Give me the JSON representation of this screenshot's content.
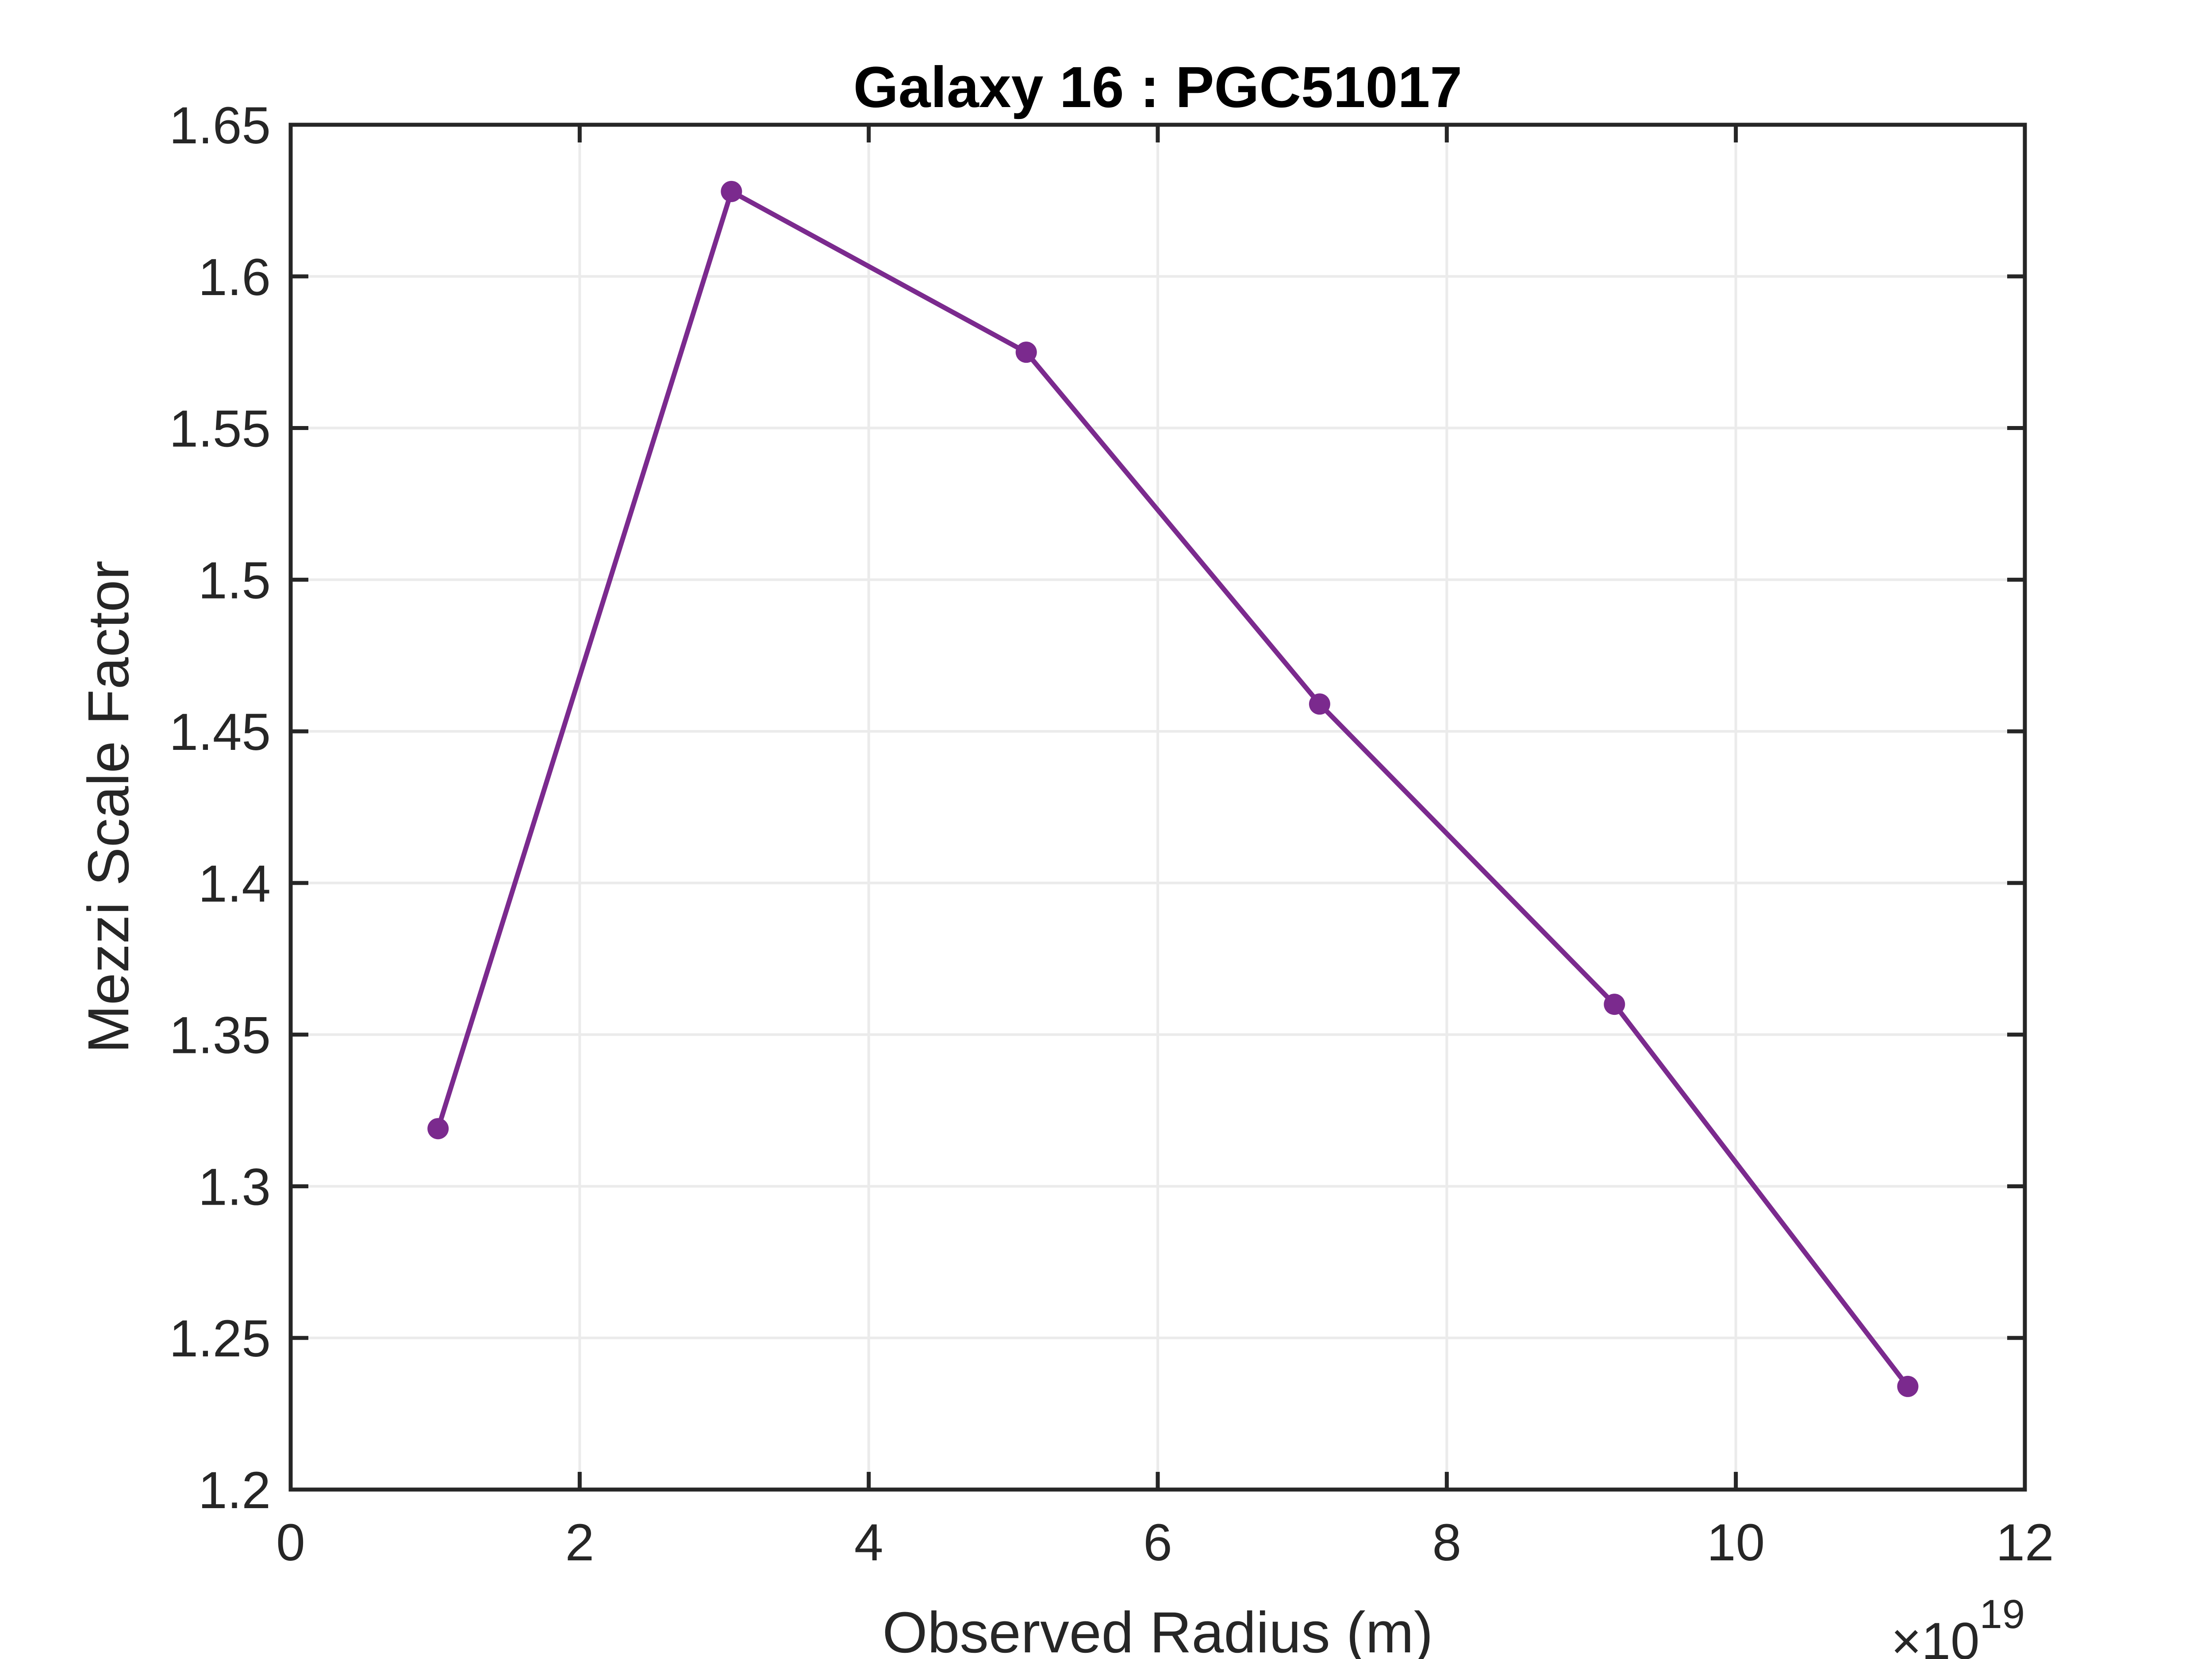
{
  "chart_data": {
    "type": "line",
    "title": "Galaxy 16 : PGC51017",
    "xlabel": "Observed Radius (m)",
    "ylabel": "Mezzi Scale Factor",
    "x_exponent": {
      "times": "×",
      "base": "10",
      "power": "19"
    },
    "xlim": [
      0,
      12
    ],
    "ylim": [
      1.2,
      1.65
    ],
    "xticks": [
      0,
      2,
      4,
      6,
      8,
      10,
      12
    ],
    "yticks": [
      1.2,
      1.25,
      1.3,
      1.35,
      1.4,
      1.45,
      1.5,
      1.55,
      1.6,
      1.65
    ],
    "xtick_labels": [
      "0",
      "2",
      "4",
      "6",
      "8",
      "10",
      "12"
    ],
    "ytick_labels": [
      "1.2",
      "1.25",
      "1.3",
      "1.35",
      "1.4",
      "1.45",
      "1.5",
      "1.55",
      "1.6",
      "1.65"
    ],
    "grid": true,
    "series": [
      {
        "color": "#7B2A8E",
        "marker": "circle",
        "x": [
          1.02,
          3.05,
          5.09,
          7.12,
          9.16,
          11.19
        ],
        "y": [
          1.319,
          1.628,
          1.575,
          1.459,
          1.36,
          1.234
        ]
      }
    ]
  }
}
